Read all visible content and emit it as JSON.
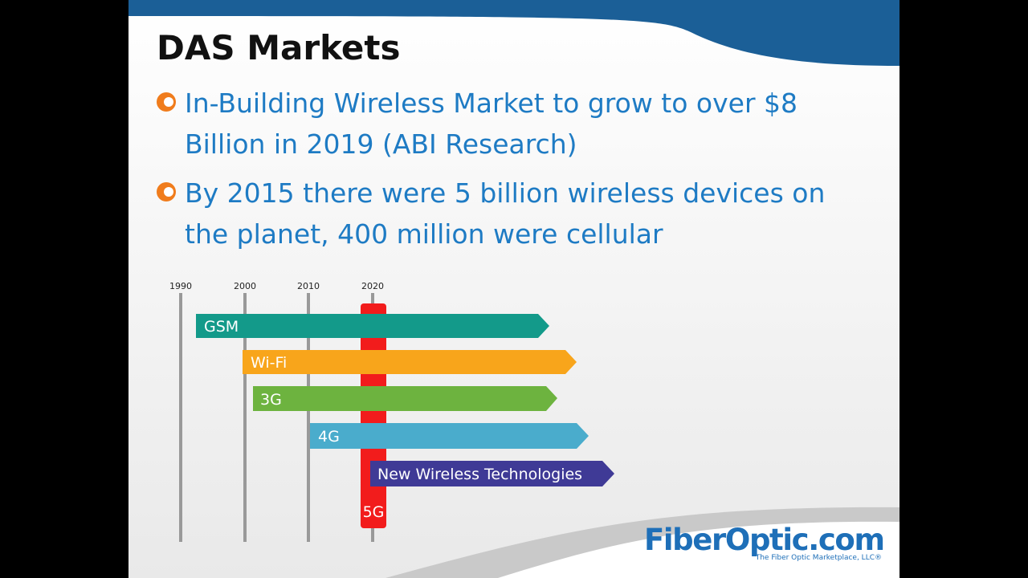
{
  "slide": {
    "title": "DAS Markets",
    "bullets": [
      "In-Building Wireless Market to grow to over $8 Billion in 2019 (ABI Research)",
      "By 2015 there were 5 billion wireless devices on the planet, 400 million were cellular"
    ],
    "timeline": {
      "years": [
        "1990",
        "2000",
        "2010",
        "2020"
      ],
      "bars": [
        "GSM",
        "Wi-Fi",
        "3G",
        "4G",
        "New Wireless Technologies"
      ],
      "highlight": "5G"
    },
    "logo": {
      "brand": "FiberOptic.com",
      "tagline": "The Fiber Optic Marketplace, LLC®"
    }
  }
}
